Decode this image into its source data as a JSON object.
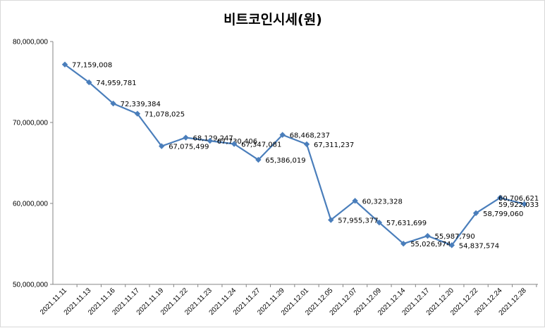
{
  "chart_data": {
    "type": "line",
    "title": "비트코인시세(원)",
    "xlabel": "",
    "ylabel": "",
    "ylim": [
      50000000,
      80000000
    ],
    "yticks": [
      50000000,
      60000000,
      70000000,
      80000000
    ],
    "ytick_labels": [
      "50,000,000",
      "60,000,000",
      "70,000,000",
      "80,000,000"
    ],
    "grid": false,
    "legend": "none",
    "categories": [
      "2021.11.11",
      "2021.11.13",
      "2021.11.16",
      "2021.11.17",
      "2021.11.19",
      "2021.11.22",
      "2021.11.23",
      "2021.11.24",
      "2021.11.27",
      "2021.11.29",
      "2021.12.01",
      "2021.12.05",
      "2021.12.07",
      "2021.12.09",
      "2021.12.14",
      "2021.12.17",
      "2021.12.20",
      "2021.12.22",
      "2021.12.24",
      "2021.12.28"
    ],
    "series": [
      {
        "name": "비트코인시세",
        "color": "#4a7ebb",
        "values": [
          77159008,
          74959781,
          72339384,
          71078025,
          67075499,
          68129247,
          67730406,
          67347081,
          65386019,
          68468237,
          67311237,
          57955377,
          60323328,
          57631699,
          55026974,
          55987790,
          54837574,
          58799060,
          60706621,
          59922033
        ],
        "labels": [
          "77,159,008",
          "74,959,781",
          "72,339,384",
          "71,078,025",
          "67,075,499",
          "68,129,247",
          "67,730,406",
          "67,347,081",
          "65,386,019",
          "68,468,237",
          "67,311,237",
          "57,955,377",
          "60,323,328",
          "57,631,699",
          "55,026,974",
          "55,987,790",
          "54,837,574",
          "58,799,060",
          "60,706,621",
          "59,922,033"
        ]
      }
    ]
  }
}
